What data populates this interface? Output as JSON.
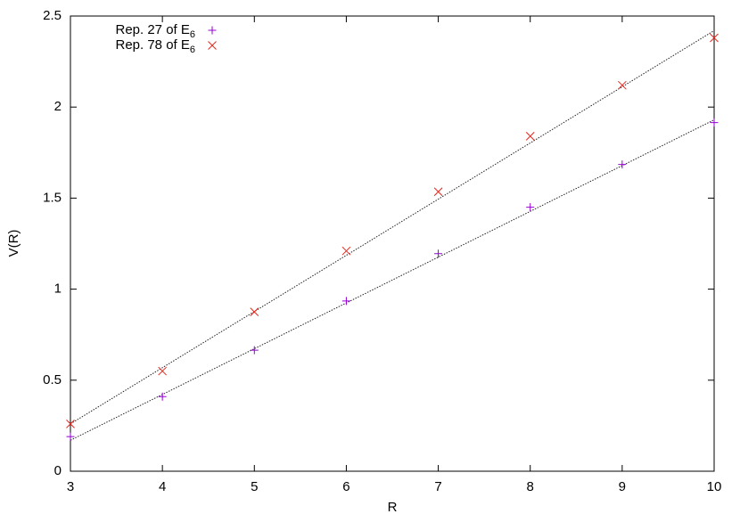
{
  "chart_data": {
    "type": "scatter",
    "xlabel": "R",
    "ylabel": "V(R)",
    "x": [
      3,
      4,
      5,
      6,
      7,
      8,
      9,
      10
    ],
    "series": [
      {
        "name": "Rep. 27 of E",
        "name_subscript": "6",
        "color": "#9400d3",
        "marker": "plus",
        "values": [
          0.19,
          0.41,
          0.665,
          0.935,
          1.195,
          1.45,
          1.685,
          1.915
        ]
      },
      {
        "name": "Rep. 78 of E",
        "name_subscript": "6",
        "color": "#e8271c",
        "marker": "cross",
        "values": [
          0.26,
          0.55,
          0.875,
          1.21,
          1.535,
          1.84,
          2.12,
          2.38
        ]
      }
    ],
    "fits": [
      {
        "x": [
          3,
          10
        ],
        "values": [
          0.17,
          1.93
        ]
      },
      {
        "x": [
          3,
          10
        ],
        "values": [
          0.26,
          2.42
        ]
      }
    ],
    "xlim": [
      3,
      10
    ],
    "xticks": [
      3,
      4,
      5,
      6,
      7,
      8,
      9,
      10
    ],
    "ylim": [
      0,
      2.5
    ],
    "yticks": [
      0,
      0.5,
      1,
      1.5,
      2,
      2.5
    ],
    "grid": false,
    "legend": "top-left"
  }
}
